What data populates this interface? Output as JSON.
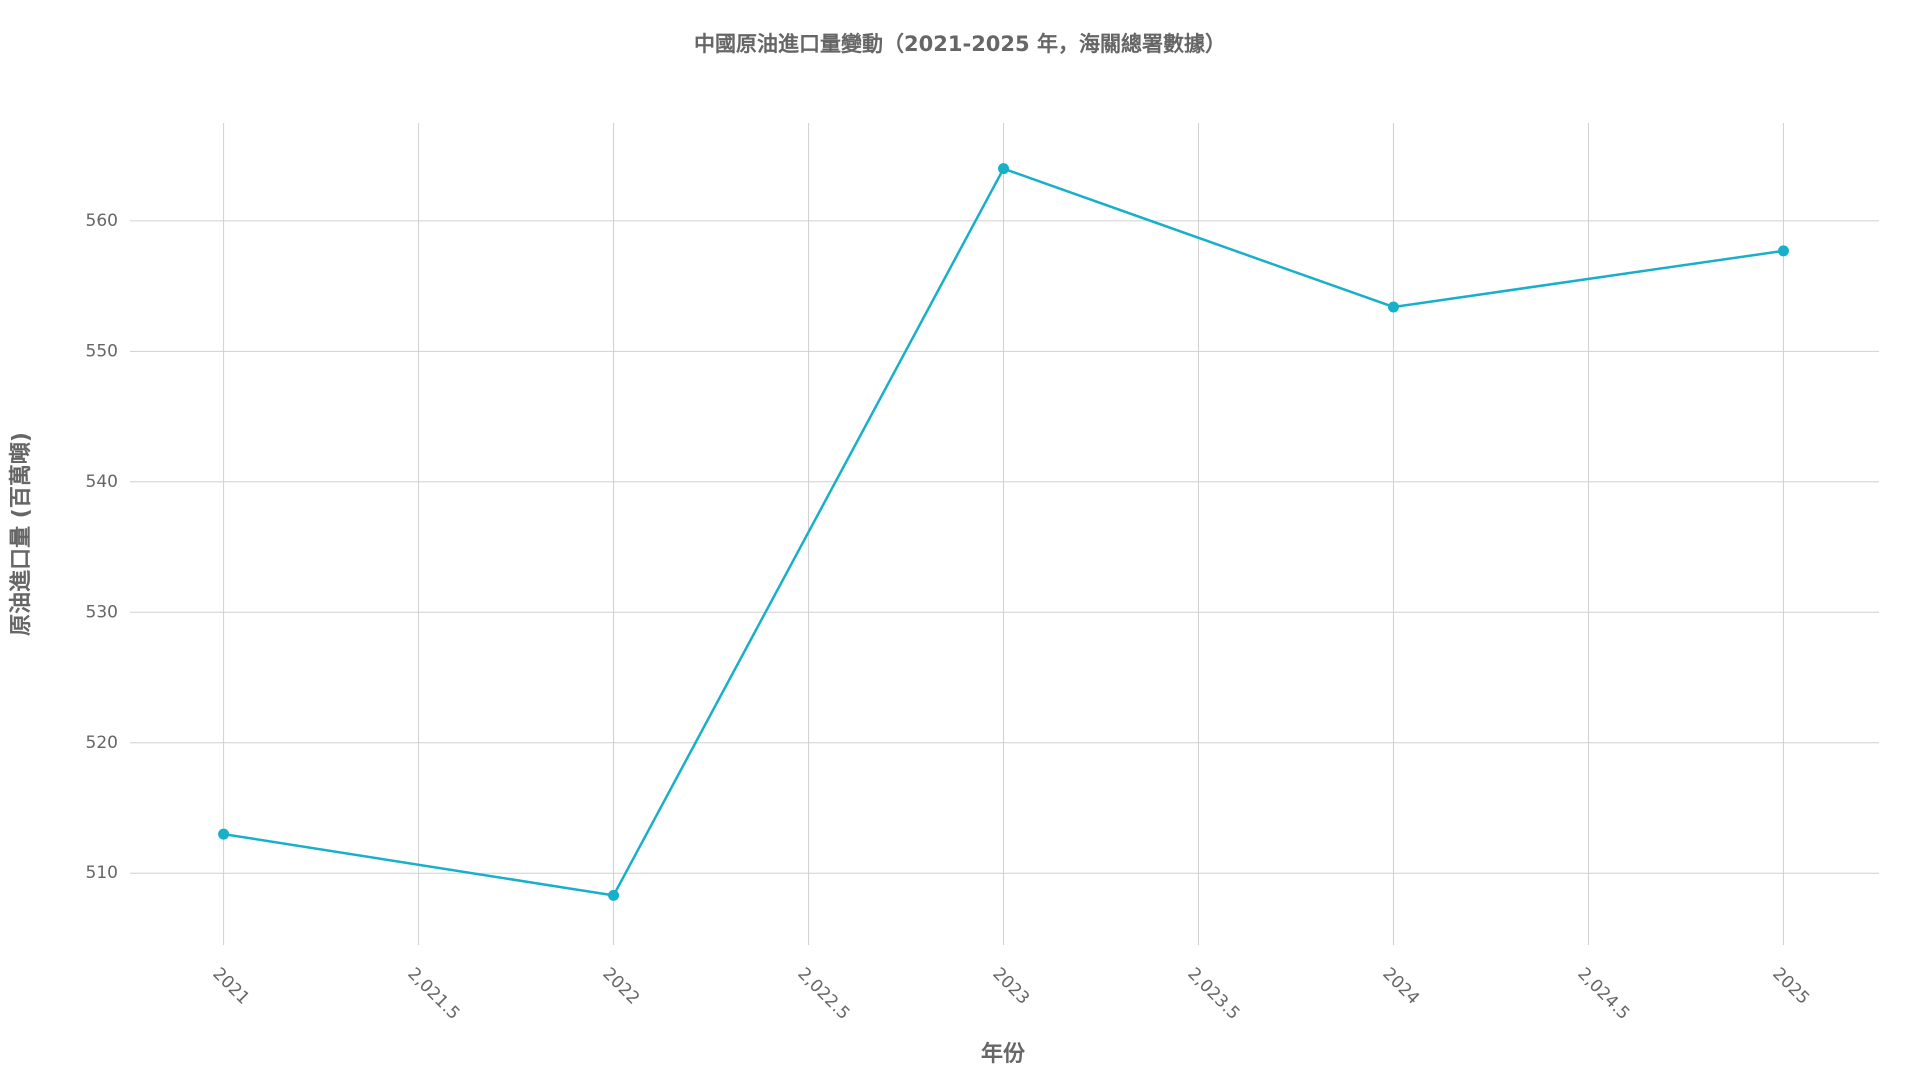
{
  "chart_data": {
    "type": "line",
    "title": "中國原油進口量變動（2021-2025 年，海關總署數據）",
    "x_label": "年份",
    "y_label": "原油進口量 (百萬噸)",
    "x": [
      2021,
      2022,
      2023,
      2024,
      2025
    ],
    "series": [
      {
        "name": "原油進口量",
        "color": "#17b0c8",
        "values": [
          513.0,
          508.3,
          564.0,
          553.4,
          557.7
        ]
      }
    ],
    "xlim": [
      2020.76,
      2025.245
    ],
    "xticks": [
      2021,
      {
        "value": 2021.5,
        "label": "2,021.5"
      },
      2022,
      {
        "value": 2022.5,
        "label": "2,022.5"
      },
      2023,
      {
        "value": 2023.5,
        "label": "2,023.5"
      },
      2024,
      {
        "value": 2024.5,
        "label": "2,024.5"
      },
      2025
    ],
    "ylim": [
      504.5,
      567.5
    ],
    "yticks": [
      510,
      520,
      530,
      540,
      550,
      560
    ],
    "grid": true
  }
}
